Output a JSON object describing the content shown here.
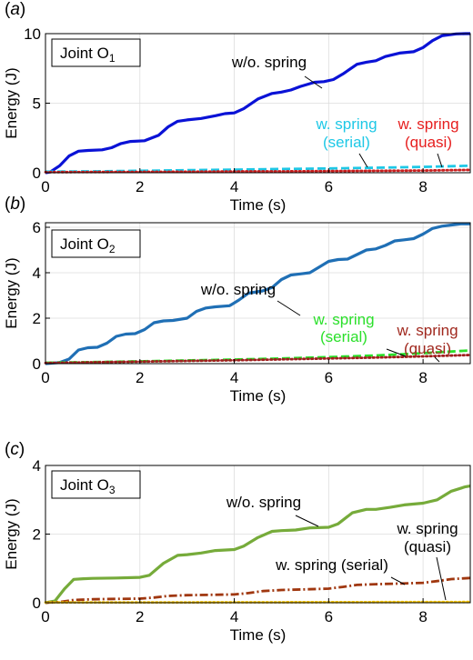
{
  "chart_data": [
    {
      "type": "line",
      "panel_label": "(a)",
      "joint_box": {
        "prefix": "Joint O",
        "subscript": "1"
      },
      "xlabel": "Time (s)",
      "ylabel": "Energy (J)",
      "xlim": [
        0,
        9
      ],
      "ylim": [
        0,
        10
      ],
      "xticks": [
        0,
        2,
        4,
        6,
        8
      ],
      "yticks": [
        0,
        5,
        10
      ],
      "grid": true,
      "series": [
        {
          "key": "wo",
          "color": "#0A12D6",
          "style": "solid",
          "x": [
            0,
            0.1,
            0.3,
            0.5,
            0.7,
            0.9,
            1.2,
            1.4,
            1.6,
            1.8,
            2.1,
            2.4,
            2.6,
            2.8,
            3.0,
            3.3,
            3.6,
            3.8,
            4.0,
            4.2,
            4.5,
            4.8,
            5.0,
            5.2,
            5.4,
            5.7,
            5.9,
            6.1,
            6.3,
            6.6,
            6.8,
            7.0,
            7.2,
            7.5,
            7.8,
            8.0,
            8.2,
            8.4,
            8.7,
            8.9,
            9.0
          ],
          "y": [
            0,
            0.05,
            0.5,
            1.2,
            1.55,
            1.6,
            1.65,
            1.8,
            2.1,
            2.25,
            2.3,
            2.7,
            3.3,
            3.7,
            3.8,
            3.9,
            4.1,
            4.25,
            4.3,
            4.6,
            5.3,
            5.7,
            5.8,
            5.95,
            6.2,
            6.5,
            6.55,
            6.7,
            7.1,
            7.8,
            7.95,
            8.05,
            8.35,
            8.6,
            8.7,
            9.0,
            9.5,
            9.85,
            9.98,
            10.0,
            10.0
          ]
        },
        {
          "key": "serial",
          "color": "#1EC8E6",
          "style": "dashed",
          "x": [
            0,
            1,
            2,
            3,
            4,
            5,
            6,
            7,
            8,
            9
          ],
          "y": [
            0.08,
            0.1,
            0.14,
            0.18,
            0.22,
            0.27,
            0.31,
            0.36,
            0.42,
            0.5
          ]
        },
        {
          "key": "quasi",
          "color": "#C81E1E",
          "style": "dotted",
          "x": [
            0,
            1,
            2,
            3,
            4,
            5,
            6,
            7,
            8,
            9
          ],
          "y": [
            0.04,
            0.05,
            0.06,
            0.07,
            0.09,
            0.1,
            0.12,
            0.14,
            0.16,
            0.2
          ]
        }
      ],
      "annotations": [
        {
          "key": "wo",
          "lines": [
            "w/o. spring"
          ],
          "color": "#000000"
        },
        {
          "key": "serial",
          "lines": [
            "w. spring",
            "(serial)"
          ],
          "color": "#1EC8E6"
        },
        {
          "key": "quasi",
          "lines": [
            "w. spring",
            "(quasi)"
          ],
          "color": "#E61E1E"
        }
      ]
    },
    {
      "type": "line",
      "panel_label": "(b)",
      "joint_box": {
        "prefix": "Joint O",
        "subscript": "2"
      },
      "xlabel": "Time (s)",
      "ylabel": "Energy (J)",
      "xlim": [
        0,
        9
      ],
      "ylim": [
        0,
        6.2
      ],
      "xticks": [
        0,
        2,
        4,
        6,
        8
      ],
      "yticks": [
        0,
        2,
        4,
        6
      ],
      "grid": true,
      "series": [
        {
          "key": "wo",
          "color": "#1F6FB5",
          "style": "solid",
          "x": [
            0,
            0.3,
            0.5,
            0.7,
            0.9,
            1.1,
            1.3,
            1.5,
            1.7,
            1.9,
            2.1,
            2.3,
            2.5,
            2.7,
            3.0,
            3.2,
            3.4,
            3.6,
            3.9,
            4.1,
            4.3,
            4.6,
            4.8,
            5.0,
            5.2,
            5.4,
            5.6,
            5.8,
            6.0,
            6.2,
            6.4,
            6.6,
            6.8,
            7.0,
            7.2,
            7.4,
            7.6,
            7.8,
            8.0,
            8.2,
            8.4,
            8.6,
            8.8,
            9.0
          ],
          "y": [
            0,
            0.05,
            0.2,
            0.6,
            0.7,
            0.72,
            0.9,
            1.2,
            1.3,
            1.32,
            1.5,
            1.8,
            1.88,
            1.9,
            2.0,
            2.3,
            2.45,
            2.5,
            2.55,
            2.8,
            3.1,
            3.2,
            3.35,
            3.7,
            3.9,
            3.95,
            4.0,
            4.25,
            4.5,
            4.58,
            4.6,
            4.8,
            5.0,
            5.05,
            5.2,
            5.4,
            5.45,
            5.5,
            5.7,
            5.95,
            6.05,
            6.1,
            6.15,
            6.15
          ]
        },
        {
          "key": "serial",
          "color": "#2BE02B",
          "style": "dashed",
          "x": [
            0,
            1,
            2,
            3,
            4,
            5,
            6,
            7,
            8,
            9
          ],
          "y": [
            0.04,
            0.07,
            0.1,
            0.14,
            0.18,
            0.23,
            0.29,
            0.36,
            0.46,
            0.58
          ]
        },
        {
          "key": "quasi",
          "color": "#A01E1E",
          "style": "dotted",
          "x": [
            0,
            1,
            2,
            3,
            4,
            5,
            6,
            7,
            8,
            9
          ],
          "y": [
            0.03,
            0.06,
            0.09,
            0.12,
            0.15,
            0.19,
            0.23,
            0.27,
            0.32,
            0.38
          ]
        }
      ],
      "annotations": [
        {
          "key": "wo",
          "lines": [
            "w/o. spring"
          ],
          "color": "#000000"
        },
        {
          "key": "serial",
          "lines": [
            "w. spring",
            "(serial)"
          ],
          "color": "#2BE02B"
        },
        {
          "key": "quasi",
          "lines": [
            "w. spring",
            "(quasi)"
          ],
          "color": "#A0281E"
        }
      ]
    },
    {
      "type": "line",
      "panel_label": "(c)",
      "joint_box": {
        "prefix": "Joint O",
        "subscript": "3"
      },
      "xlabel": "Time (s)",
      "ylabel": "Energy (J)",
      "xlim": [
        0,
        9
      ],
      "ylim": [
        0,
        4
      ],
      "xticks": [
        0,
        2,
        4,
        6,
        8
      ],
      "yticks": [
        0,
        2,
        4
      ],
      "grid": true,
      "series": [
        {
          "key": "wo",
          "color": "#76AB3A",
          "style": "solid",
          "x": [
            0,
            0.2,
            0.4,
            0.6,
            0.8,
            1.0,
            1.5,
            2.0,
            2.2,
            2.5,
            2.8,
            3.0,
            3.3,
            3.6,
            4.0,
            4.2,
            4.5,
            4.8,
            5.0,
            5.3,
            5.6,
            6.0,
            6.2,
            6.5,
            6.8,
            7.0,
            7.3,
            7.6,
            8.0,
            8.3,
            8.6,
            8.9,
            9.0
          ],
          "y": [
            0,
            0.05,
            0.4,
            0.68,
            0.7,
            0.71,
            0.72,
            0.74,
            0.8,
            1.15,
            1.38,
            1.4,
            1.45,
            1.52,
            1.55,
            1.65,
            1.9,
            2.08,
            2.1,
            2.12,
            2.18,
            2.2,
            2.3,
            2.62,
            2.72,
            2.72,
            2.78,
            2.85,
            2.9,
            3.0,
            3.25,
            3.38,
            3.4
          ]
        },
        {
          "key": "serial",
          "color": "#A0370F",
          "style": "dashdot",
          "x": [
            0,
            0.3,
            0.6,
            1.0,
            1.5,
            2.0,
            2.3,
            2.6,
            3.0,
            3.5,
            4.0,
            4.3,
            4.6,
            5.0,
            5.5,
            6.0,
            6.3,
            6.6,
            7.0,
            7.5,
            8.0,
            8.3,
            8.6,
            9.0
          ],
          "y": [
            0,
            0.02,
            0.08,
            0.1,
            0.11,
            0.12,
            0.15,
            0.2,
            0.22,
            0.23,
            0.24,
            0.28,
            0.34,
            0.37,
            0.39,
            0.41,
            0.46,
            0.52,
            0.54,
            0.56,
            0.58,
            0.63,
            0.69,
            0.72
          ]
        },
        {
          "key": "quasi",
          "color": "#F2C200",
          "style": "dotted",
          "x": [
            0,
            3,
            6,
            9
          ],
          "y": [
            0.01,
            0.01,
            0.015,
            0.02
          ]
        }
      ],
      "annotations": [
        {
          "key": "wo",
          "lines": [
            "w/o. spring"
          ],
          "color": "#000000"
        },
        {
          "key": "serial",
          "lines": [
            "w. spring (serial)"
          ],
          "color": "#000000"
        },
        {
          "key": "quasi",
          "lines": [
            "w. spring",
            "(quasi)"
          ],
          "color": "#000000"
        }
      ]
    }
  ]
}
